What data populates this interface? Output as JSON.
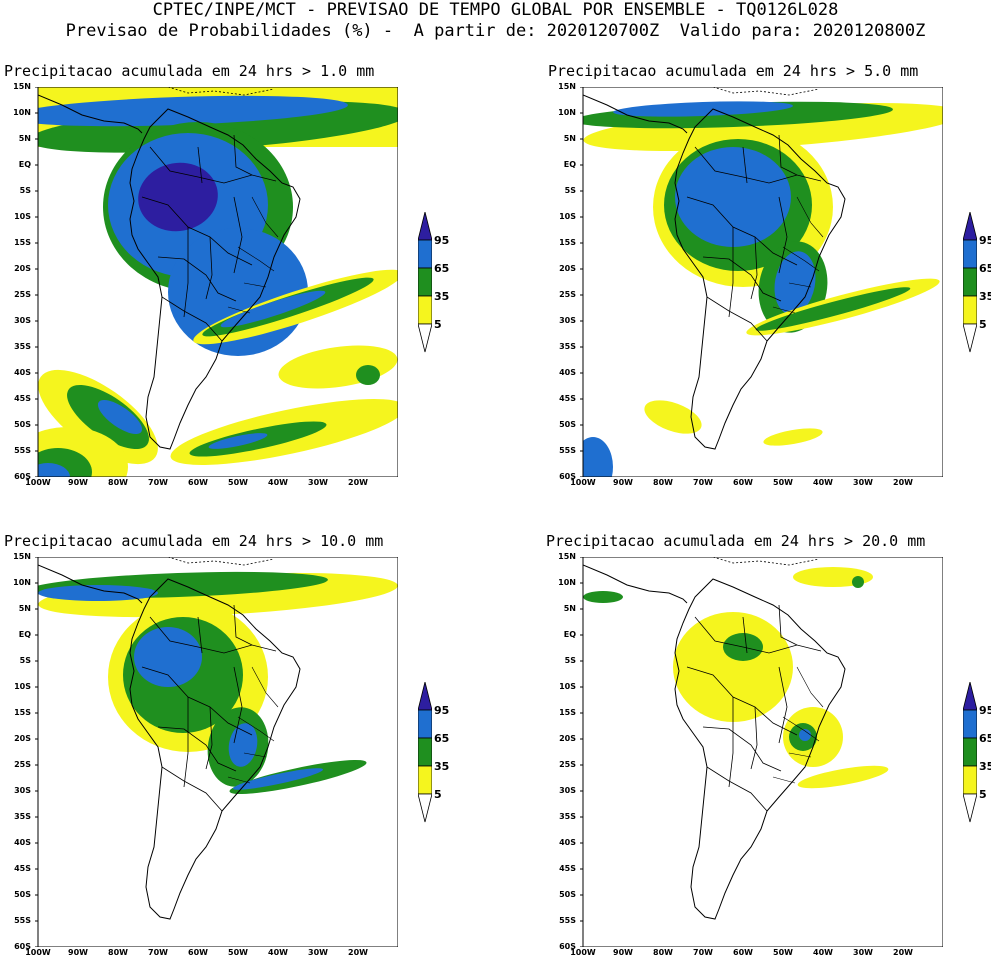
{
  "header": {
    "line1": "CPTEC/INPE/MCT - PREVISAO DE TEMPO GLOBAL POR ENSEMBLE - TQ0126L028",
    "line2": "Previsao de Probabilidades (%) -  A partir de: 2020120700Z  Valido para: 2020120800Z"
  },
  "panels": [
    {
      "title": "Precipitacao acumulada em 24 hrs > 1.0 mm"
    },
    {
      "title": "Precipitacao acumulada em 24 hrs > 5.0 mm"
    },
    {
      "title": "Precipitacao acumulada em 24 hrs > 10.0 mm"
    },
    {
      "title": "Precipitacao acumulada em 24 hrs > 20.0 mm"
    }
  ],
  "latitude_labels": [
    "15N",
    "10N",
    "5N",
    "EQ",
    "5S",
    "10S",
    "15S",
    "20S",
    "25S",
    "30S",
    "35S",
    "40S",
    "45S",
    "50S",
    "55S",
    "60S"
  ],
  "longitude_labels": [
    "100W",
    "90W",
    "80W",
    "70W",
    "60W",
    "50W",
    "40W",
    "30W",
    "20W"
  ],
  "colorbar": {
    "labels": [
      "95",
      "65",
      "35",
      "5"
    ],
    "colors": {
      "very_high": "#2d1ea0",
      "high": "#1f6fd0",
      "medium": "#1f8f1f",
      "low": "#f5f51e"
    }
  }
}
